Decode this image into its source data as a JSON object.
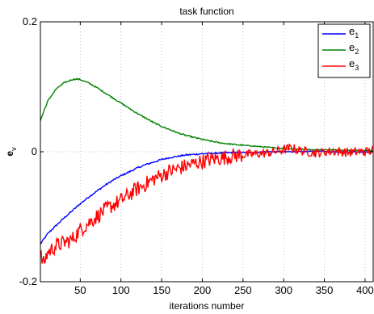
{
  "chart_data": {
    "type": "line",
    "title": "task function",
    "xlabel": "iterations number",
    "ylabel": "e",
    "ylabel_sub": "v",
    "xlim": [
      1,
      410
    ],
    "ylim": [
      -0.2,
      0.2
    ],
    "xticks": [
      50,
      100,
      150,
      200,
      250,
      300,
      350,
      400
    ],
    "yticks": [
      -0.2,
      0,
      0.2
    ],
    "ytick_labels": [
      "-0.2",
      "0",
      "0.2"
    ],
    "grid": true,
    "legend_position": "top-right",
    "series": [
      {
        "name": "e",
        "sub": "1",
        "color": "#0000ff",
        "noise": 0.0012,
        "x": [
          1,
          10,
          20,
          30,
          40,
          50,
          60,
          70,
          80,
          90,
          100,
          110,
          120,
          130,
          140,
          150,
          160,
          170,
          180,
          190,
          200,
          220,
          240,
          260,
          280,
          300,
          320,
          340,
          360,
          380,
          400,
          410
        ],
        "y": [
          -0.142,
          -0.126,
          -0.114,
          -0.102,
          -0.091,
          -0.08,
          -0.07,
          -0.061,
          -0.052,
          -0.044,
          -0.037,
          -0.031,
          -0.025,
          -0.02,
          -0.016,
          -0.012,
          -0.009,
          -0.007,
          -0.005,
          -0.004,
          -0.003,
          -0.002,
          -0.001,
          -0.001,
          0,
          0,
          0,
          0.001,
          0,
          0,
          0,
          0
        ]
      },
      {
        "name": "e",
        "sub": "2",
        "color": "#008000",
        "noise": 0.001,
        "x": [
          1,
          10,
          20,
          30,
          40,
          45,
          50,
          60,
          70,
          80,
          90,
          100,
          110,
          120,
          130,
          140,
          150,
          160,
          170,
          180,
          190,
          200,
          220,
          240,
          260,
          280,
          300,
          320,
          340,
          360,
          380,
          400,
          410
        ],
        "y": [
          0.048,
          0.078,
          0.096,
          0.106,
          0.111,
          0.112,
          0.111,
          0.106,
          0.099,
          0.091,
          0.083,
          0.075,
          0.067,
          0.059,
          0.052,
          0.045,
          0.039,
          0.034,
          0.029,
          0.025,
          0.022,
          0.019,
          0.014,
          0.011,
          0.009,
          0.007,
          0.005,
          0.004,
          0.003,
          0.003,
          0.002,
          0.002,
          0.002
        ]
      },
      {
        "name": "e",
        "sub": "3",
        "color": "#ff0000",
        "noise": 0.012,
        "x": [
          1,
          5,
          10,
          20,
          30,
          40,
          50,
          60,
          70,
          80,
          90,
          100,
          110,
          120,
          130,
          140,
          150,
          160,
          170,
          180,
          190,
          200,
          210,
          220,
          230,
          240,
          250,
          260,
          280,
          300,
          310,
          320,
          340,
          360,
          380,
          400,
          410
        ],
        "y": [
          -0.16,
          -0.172,
          -0.155,
          -0.145,
          -0.14,
          -0.135,
          -0.12,
          -0.11,
          -0.1,
          -0.09,
          -0.082,
          -0.075,
          -0.066,
          -0.057,
          -0.05,
          -0.042,
          -0.036,
          -0.03,
          -0.026,
          -0.022,
          -0.018,
          -0.015,
          -0.012,
          -0.01,
          -0.008,
          -0.006,
          -0.005,
          -0.004,
          -0.002,
          0.003,
          0.006,
          0.002,
          -0.002,
          0.001,
          -0.001,
          0,
          0.002
        ]
      }
    ]
  }
}
